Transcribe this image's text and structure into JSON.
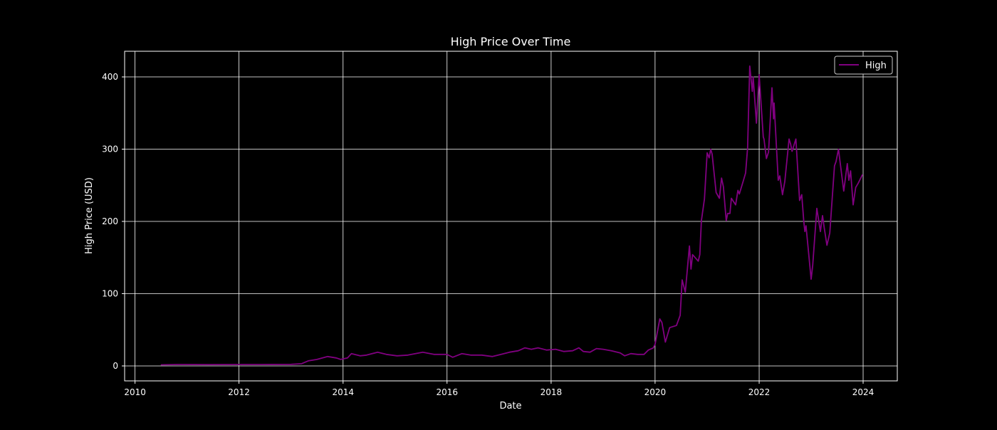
{
  "chart_data": {
    "type": "line",
    "title": "High Price Over Time",
    "xlabel": "Date",
    "ylabel": "High Price (USD)",
    "xlim": [
      "2009-10-20",
      "2024-08-28"
    ],
    "ylim": [
      -20.7,
      435.5
    ],
    "x_ticks": [
      "2010",
      "2012",
      "2014",
      "2016",
      "2018",
      "2020",
      "2022",
      "2024"
    ],
    "y_ticks": [
      0,
      100,
      200,
      300,
      400
    ],
    "grid": true,
    "background": "#000000",
    "legend": {
      "placement": "top-right",
      "entries": [
        "High"
      ]
    },
    "series": [
      {
        "name": "High",
        "color": "#800080",
        "points": [
          [
            "2010-07-01",
            1.5
          ],
          [
            "2010-11-01",
            2.0
          ],
          [
            "2011-06-01",
            1.8
          ],
          [
            "2012-01-01",
            2.0
          ],
          [
            "2012-06-01",
            2.0
          ],
          [
            "2013-01-01",
            2.2
          ],
          [
            "2013-03-15",
            3
          ],
          [
            "2013-05-01",
            7
          ],
          [
            "2013-07-01",
            9
          ],
          [
            "2013-09-15",
            13
          ],
          [
            "2013-11-15",
            11
          ],
          [
            "2013-12-15",
            9
          ],
          [
            "2014-02-01",
            11
          ],
          [
            "2014-03-01",
            17
          ],
          [
            "2014-05-01",
            14
          ],
          [
            "2014-06-15",
            15
          ],
          [
            "2014-09-01",
            19
          ],
          [
            "2014-11-01",
            16
          ],
          [
            "2015-01-15",
            14
          ],
          [
            "2015-04-01",
            15
          ],
          [
            "2015-07-15",
            19
          ],
          [
            "2015-10-01",
            16
          ],
          [
            "2016-01-01",
            16
          ],
          [
            "2016-02-10",
            12
          ],
          [
            "2016-04-15",
            17
          ],
          [
            "2016-06-15",
            15
          ],
          [
            "2016-09-01",
            15
          ],
          [
            "2016-11-15",
            13
          ],
          [
            "2017-01-15",
            16
          ],
          [
            "2017-03-15",
            19
          ],
          [
            "2017-05-15",
            21
          ],
          [
            "2017-07-01",
            25
          ],
          [
            "2017-08-15",
            23
          ],
          [
            "2017-10-01",
            25
          ],
          [
            "2017-12-01",
            22
          ],
          [
            "2018-02-01",
            23
          ],
          [
            "2018-04-01",
            20
          ],
          [
            "2018-06-01",
            21
          ],
          [
            "2018-07-15",
            25
          ],
          [
            "2018-08-15",
            20
          ],
          [
            "2018-10-01",
            19
          ],
          [
            "2018-11-15",
            24
          ],
          [
            "2019-01-01",
            23
          ],
          [
            "2019-03-01",
            21
          ],
          [
            "2019-05-01",
            18
          ],
          [
            "2019-06-01",
            14
          ],
          [
            "2019-07-15",
            17
          ],
          [
            "2019-09-01",
            16
          ],
          [
            "2019-10-15",
            16
          ],
          [
            "2019-11-15",
            22
          ],
          [
            "2019-12-20",
            25
          ],
          [
            "2020-01-01",
            30
          ],
          [
            "2020-02-03",
            65
          ],
          [
            "2020-02-18",
            60
          ],
          [
            "2020-03-13",
            33
          ],
          [
            "2020-04-12",
            53
          ],
          [
            "2020-05-30",
            56
          ],
          [
            "2020-06-25",
            70
          ],
          [
            "2020-07-09",
            119
          ],
          [
            "2020-07-31",
            102
          ],
          [
            "2020-08-29",
            166
          ],
          [
            "2020-09-09",
            134
          ],
          [
            "2020-09-20",
            154
          ],
          [
            "2020-10-30",
            145
          ],
          [
            "2020-11-10",
            154
          ],
          [
            "2020-11-21",
            201
          ],
          [
            "2020-12-13",
            231
          ],
          [
            "2021-01-01",
            295
          ],
          [
            "2021-01-15",
            288
          ],
          [
            "2021-01-26",
            300
          ],
          [
            "2021-02-05",
            293
          ],
          [
            "2021-03-05",
            240
          ],
          [
            "2021-03-28",
            232
          ],
          [
            "2021-04-12",
            260
          ],
          [
            "2021-04-25",
            248
          ],
          [
            "2021-05-15",
            201
          ],
          [
            "2021-05-25",
            211
          ],
          [
            "2021-06-10",
            211
          ],
          [
            "2021-06-20",
            232
          ],
          [
            "2021-07-20",
            223
          ],
          [
            "2021-08-05",
            243
          ],
          [
            "2021-08-15",
            238
          ],
          [
            "2021-09-10",
            255
          ],
          [
            "2021-09-28",
            267
          ],
          [
            "2021-10-12",
            302
          ],
          [
            "2021-10-27",
            415
          ],
          [
            "2021-11-14",
            380
          ],
          [
            "2021-11-20",
            400
          ],
          [
            "2021-12-13",
            336
          ],
          [
            "2022-01-01",
            403
          ],
          [
            "2022-01-30",
            317
          ],
          [
            "2022-02-04",
            314
          ],
          [
            "2022-02-21",
            287
          ],
          [
            "2022-03-08",
            296
          ],
          [
            "2022-04-01",
            385
          ],
          [
            "2022-04-12",
            342
          ],
          [
            "2022-04-16",
            364
          ],
          [
            "2022-05-15",
            257
          ],
          [
            "2022-05-26",
            263
          ],
          [
            "2022-06-14",
            237
          ],
          [
            "2022-06-30",
            255
          ],
          [
            "2022-07-30",
            314
          ],
          [
            "2022-08-10",
            307
          ],
          [
            "2022-08-20",
            297
          ],
          [
            "2022-09-16",
            314
          ],
          [
            "2022-10-12",
            229
          ],
          [
            "2022-10-27",
            237
          ],
          [
            "2022-11-10",
            201
          ],
          [
            "2022-11-18",
            186
          ],
          [
            "2022-11-26",
            194
          ],
          [
            "2023-01-01",
            120
          ],
          [
            "2023-01-12",
            139
          ],
          [
            "2023-02-10",
            218
          ],
          [
            "2023-03-07",
            186
          ],
          [
            "2023-03-22",
            208
          ],
          [
            "2023-04-03",
            191
          ],
          [
            "2023-04-22",
            167
          ],
          [
            "2023-05-12",
            184
          ],
          [
            "2023-06-14",
            277
          ],
          [
            "2023-06-25",
            283
          ],
          [
            "2023-07-12",
            300
          ],
          [
            "2023-08-18",
            242
          ],
          [
            "2023-09-12",
            280
          ],
          [
            "2023-09-23",
            257
          ],
          [
            "2023-10-05",
            270
          ],
          [
            "2023-10-23",
            223
          ],
          [
            "2023-11-10",
            247
          ],
          [
            "2023-11-28",
            253
          ],
          [
            "2023-12-28",
            265
          ]
        ]
      }
    ]
  }
}
